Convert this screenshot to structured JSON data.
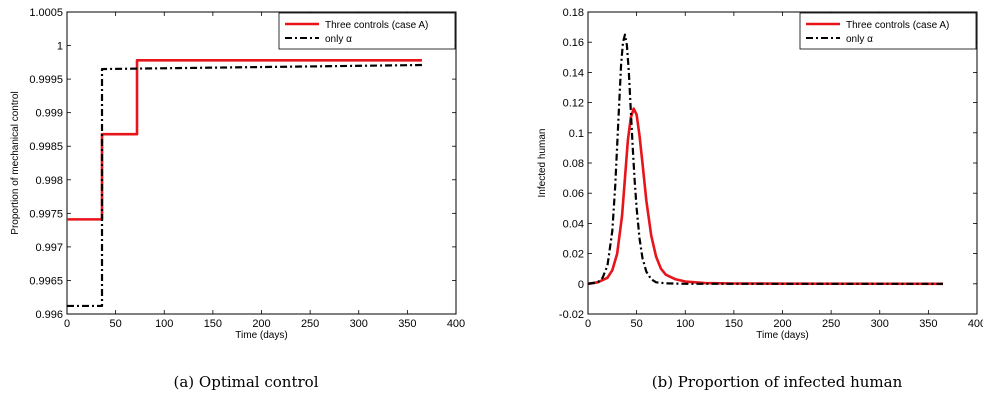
{
  "chart_data": [
    {
      "type": "line",
      "caption": "(a)  Optimal control",
      "xlabel": "Time (days)",
      "ylabel": "Proportion of mechanical control",
      "xlim": [
        0,
        400
      ],
      "ylim": [
        0.996,
        1.0005
      ],
      "xticks": [
        0,
        50,
        100,
        150,
        200,
        250,
        300,
        350,
        400
      ],
      "yticks": [
        0.996,
        0.9965,
        0.997,
        0.9975,
        0.998,
        0.9985,
        0.999,
        0.9995,
        1,
        1.0005
      ],
      "ytick_labels": [
        "0.996",
        "0.9965",
        "0.997",
        "0.9975",
        "0.998",
        "0.9985",
        "0.999",
        "0.9995",
        "1",
        "1.0005"
      ],
      "legend_position": "top-right",
      "grid": false,
      "series": [
        {
          "name": "Three controls (case A)",
          "color": "#e8141b",
          "style": "solid",
          "x": [
            0,
            36,
            36,
            72,
            72,
            365
          ],
          "y": [
            0.99741,
            0.99741,
            0.99868,
            0.99868,
            0.99978,
            0.99978
          ]
        },
        {
          "name": "only α",
          "color": "#000000",
          "style": "dashdot",
          "x": [
            0,
            36,
            36,
            365
          ],
          "y": [
            0.99612,
            0.99612,
            0.99965,
            0.99971
          ]
        }
      ]
    },
    {
      "type": "line",
      "caption": "(b)  Proportion of infected human",
      "xlabel": "Time (days)",
      "ylabel": "Infected human",
      "xlim": [
        0,
        400
      ],
      "ylim": [
        -0.02,
        0.18
      ],
      "xticks": [
        0,
        50,
        100,
        150,
        200,
        250,
        300,
        350,
        400
      ],
      "yticks": [
        -0.02,
        0,
        0.02,
        0.04,
        0.06,
        0.08,
        0.1,
        0.12,
        0.14,
        0.16,
        0.18
      ],
      "ytick_labels": [
        "-0.02",
        "0",
        "0.02",
        "0.04",
        "0.06",
        "0.08",
        "0.1",
        "0.12",
        "0.14",
        "0.16",
        "0.18"
      ],
      "legend_position": "top-right",
      "grid": false,
      "series": [
        {
          "name": "Three controls (case A)",
          "color": "#e8141b",
          "style": "solid",
          "x": [
            0,
            10,
            20,
            25,
            30,
            35,
            38,
            41,
            44,
            47,
            50,
            53,
            56,
            60,
            65,
            70,
            75,
            80,
            90,
            100,
            120,
            150,
            200,
            365
          ],
          "y": [
            0,
            0.001,
            0.004,
            0.009,
            0.02,
            0.045,
            0.07,
            0.095,
            0.11,
            0.116,
            0.112,
            0.098,
            0.08,
            0.055,
            0.032,
            0.018,
            0.01,
            0.006,
            0.003,
            0.0015,
            0.0005,
            0.0002,
            0.0001,
            0
          ]
        },
        {
          "name": "only α",
          "color": "#000000",
          "style": "dashdot",
          "x": [
            0,
            10,
            15,
            20,
            25,
            28,
            31,
            34,
            36,
            38,
            40,
            42,
            44,
            46,
            48,
            50,
            53,
            56,
            60,
            65,
            70,
            80,
            100,
            150,
            365
          ],
          "y": [
            0,
            0.001,
            0.004,
            0.012,
            0.035,
            0.065,
            0.105,
            0.145,
            0.16,
            0.165,
            0.158,
            0.14,
            0.115,
            0.09,
            0.068,
            0.05,
            0.03,
            0.017,
            0.008,
            0.003,
            0.001,
            0.0003,
            0,
            0,
            0
          ]
        }
      ]
    }
  ]
}
